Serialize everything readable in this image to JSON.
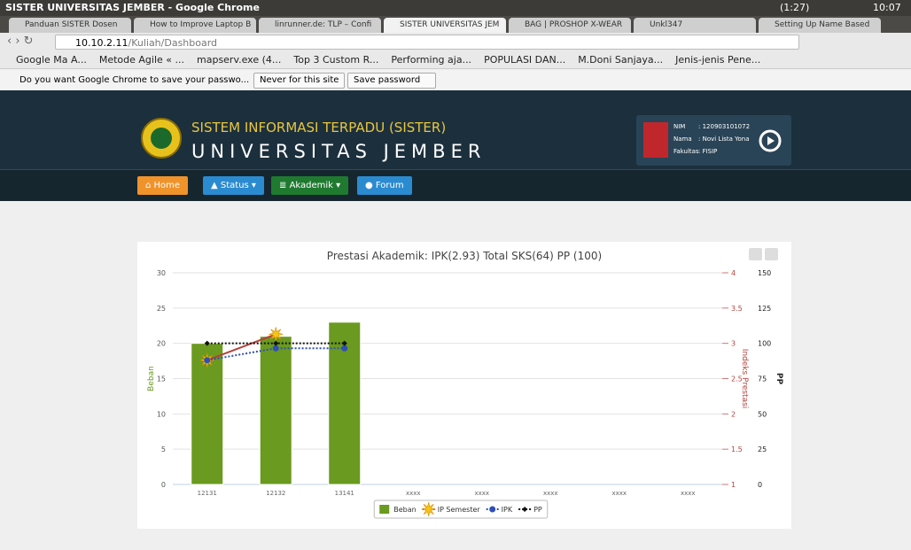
{
  "browser": {
    "window_title": "SISTER UNIVERSITAS JEMBER - Google Chrome",
    "battery": "(1:27)",
    "clock": "10:07",
    "tabs": [
      "Panduan SISTER Dosen",
      "How to Improve Laptop B",
      "linrunner.de: TLP – Confi",
      "SISTER UNIVERSITAS JEM",
      "BAG | PROSHOP X-WEAR",
      "Unkl347",
      "Setting Up Name Based"
    ],
    "url_host": "10.10.2.11",
    "url_path": "/Kuliah/Dashboard",
    "bookmarks": [
      "Google Ma A...",
      "Metode Agile « ...",
      "mapserv.exe (4...",
      "Top 3 Custom R...",
      "Performing aja...",
      "POPULASI DAN...",
      "M.Doni Sanjaya...",
      "Jenis-jenis Pene..."
    ],
    "password_prompt": {
      "message": "Do you want Google Chrome to save your passwo...",
      "never_button": "Never for this site",
      "save_button": "Save password"
    }
  },
  "site": {
    "title_line1": "SISTEM INFORMASI TERPADU (SISTER)",
    "title_line2": "UNIVERSITAS JEMBER",
    "user": {
      "nim_label": "NIM",
      "nim": ": 120903101072",
      "name_label": "Nama",
      "name": ": Novi Lista Yona",
      "faculty_label": "Fakultas",
      "faculty": ": FISIP"
    },
    "nav": [
      "Home",
      "Status",
      "Akademik",
      "Forum"
    ]
  },
  "chart_data": {
    "type": "bar",
    "title": "Prestasi Akademik: IPK(2.93) Total SKS(64) PP (100)",
    "categories": [
      "12131",
      "12132",
      "13141",
      "xxxx",
      "xxxx",
      "xxxx",
      "xxxx",
      "xxxx"
    ],
    "y_label": "Beban",
    "y2_label": "Indeks Prestasi",
    "y3_label": "PP",
    "ylim": [
      0,
      30
    ],
    "yticks": [
      0,
      5,
      10,
      15,
      20,
      25,
      30
    ],
    "y2lim": [
      1,
      4
    ],
    "y2ticks": [
      1,
      1.5,
      2,
      2.5,
      3,
      3.5,
      4
    ],
    "y3lim": [
      0,
      150
    ],
    "y3ticks": [
      0,
      25,
      50,
      75,
      100,
      125,
      150
    ],
    "grid": true,
    "legend": "bottom",
    "series": [
      {
        "name": "Beban",
        "type": "bar",
        "color": "#6a9a1f",
        "values": [
          20,
          21,
          23,
          null,
          null,
          null,
          null,
          null
        ]
      },
      {
        "name": "IP Semester",
        "type": "line",
        "color": "#b5413b",
        "axis": "y2",
        "line_style": "solid",
        "marker": "star",
        "values": [
          2.76,
          3.13,
          null,
          null,
          null,
          null,
          null,
          null
        ]
      },
      {
        "name": "IPK",
        "type": "line",
        "color": "#2f4fb5",
        "axis": "y2",
        "line_style": "dotted",
        "marker": "circle",
        "values": [
          2.76,
          2.93,
          2.93,
          null,
          null,
          null,
          null,
          null
        ]
      },
      {
        "name": "PP",
        "type": "line",
        "color": "#111111",
        "axis": "y3",
        "line_style": "dotted",
        "marker": "diamond",
        "values": [
          100,
          100,
          100,
          null,
          null,
          null,
          null,
          null
        ]
      }
    ]
  }
}
